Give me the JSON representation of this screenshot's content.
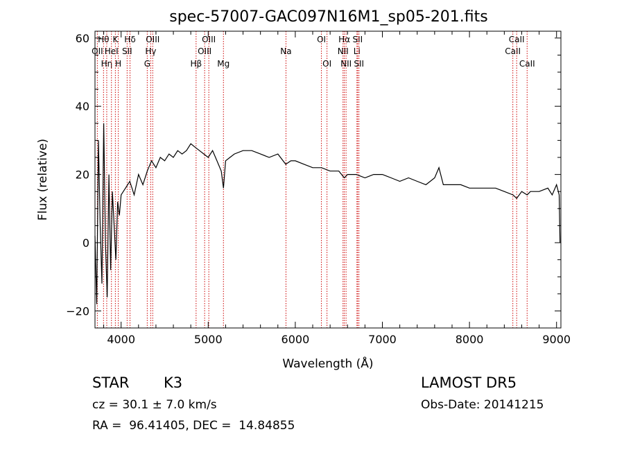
{
  "chart_data": {
    "type": "line",
    "title": "spec-57007-GAC097N16M1_sp05-201.fits",
    "xlabel": "Wavelength (Å)",
    "ylabel": "Flux (relative)",
    "xlim": [
      3700,
      9050
    ],
    "ylim": [
      -25,
      62
    ],
    "x_ticks": [
      4000,
      5000,
      6000,
      7000,
      8000,
      9000
    ],
    "y_ticks": [
      -20,
      0,
      20,
      40,
      60
    ],
    "grid": false,
    "series": [
      {
        "x": [
          3700,
          3720,
          3740,
          3760,
          3780,
          3800,
          3820,
          3840,
          3860,
          3880,
          3900,
          3920,
          3940,
          3960,
          3980,
          4000,
          4050,
          4100,
          4150,
          4200,
          4250,
          4300,
          4350,
          4400,
          4450,
          4500,
          4550,
          4600,
          4650,
          4700,
          4750,
          4800,
          4850,
          4900,
          4950,
          5000,
          5050,
          5100,
          5150,
          5175,
          5200,
          5250,
          5300,
          5400,
          5500,
          5600,
          5700,
          5800,
          5890,
          5950,
          6000,
          6100,
          6200,
          6300,
          6400,
          6500,
          6563,
          6600,
          6700,
          6800,
          6900,
          7000,
          7100,
          7200,
          7300,
          7400,
          7500,
          7600,
          7650,
          7700,
          7800,
          7900,
          8000,
          8100,
          8200,
          8300,
          8400,
          8500,
          8542,
          8600,
          8662,
          8700,
          8800,
          8900,
          8950,
          9000,
          9030,
          9040
        ],
        "y": [
          2,
          -18,
          30,
          5,
          -12,
          35,
          0,
          -16,
          20,
          -8,
          15,
          5,
          -5,
          12,
          8,
          14,
          16,
          18,
          14,
          20,
          17,
          21,
          24,
          22,
          25,
          24,
          26,
          25,
          27,
          26,
          27,
          29,
          28,
          27,
          26,
          25,
          27,
          24,
          21,
          16,
          24,
          25,
          26,
          27,
          27,
          26,
          25,
          26,
          23,
          24,
          24,
          23,
          22,
          22,
          21,
          21,
          19,
          20,
          20,
          19,
          20,
          20,
          19,
          18,
          19,
          18,
          17,
          19,
          22,
          17,
          17,
          17,
          16,
          16,
          16,
          16,
          15,
          14,
          13,
          15,
          14,
          15,
          15,
          16,
          14,
          17,
          14,
          0
        ]
      }
    ],
    "line_markers": [
      {
        "label": "OII",
        "x": 3727,
        "row": 2
      },
      {
        "label": "Hθ",
        "x": 3798,
        "row": 1
      },
      {
        "label": "Hη",
        "x": 3835,
        "row": 3
      },
      {
        "label": "HeI",
        "x": 3889,
        "row": 2
      },
      {
        "label": "K",
        "x": 3934,
        "row": 1
      },
      {
        "label": "H",
        "x": 3968,
        "row": 3
      },
      {
        "label": "Hδ",
        "x": 4102,
        "row": 1
      },
      {
        "label": "SII",
        "x": 4069,
        "row": 2
      },
      {
        "label": "G",
        "x": 4300,
        "row": 3
      },
      {
        "label": "Hγ",
        "x": 4340,
        "row": 2
      },
      {
        "label": "OIII",
        "x": 4363,
        "row": 1
      },
      {
        "label": "Hβ",
        "x": 4861,
        "row": 3
      },
      {
        "label": "OIII",
        "x": 4959,
        "row": 2
      },
      {
        "label": "OIII",
        "x": 5007,
        "row": 1
      },
      {
        "label": "Mg",
        "x": 5175,
        "row": 3
      },
      {
        "label": "Na",
        "x": 5893,
        "row": 2
      },
      {
        "label": "OI",
        "x": 6300,
        "row": 1
      },
      {
        "label": "OI",
        "x": 6364,
        "row": 3
      },
      {
        "label": "NII",
        "x": 6548,
        "row": 2
      },
      {
        "label": "Hα",
        "x": 6563,
        "row": 1
      },
      {
        "label": "NII",
        "x": 6583,
        "row": 3
      },
      {
        "label": "Li",
        "x": 6708,
        "row": 2
      },
      {
        "label": "SII",
        "x": 6716,
        "row": 1
      },
      {
        "label": "SII",
        "x": 6731,
        "row": 3
      },
      {
        "label": "CaII",
        "x": 8498,
        "row": 2
      },
      {
        "label": "CaII",
        "x": 8542,
        "row": 1
      },
      {
        "label": "CaII",
        "x": 8662,
        "row": 3
      }
    ]
  },
  "info": {
    "object_class": "STAR",
    "subclass": "K3",
    "redshift_text": "cz = 30.1 ± 7.0 km/s",
    "coords_text": "RA =  96.41405, DEC =  14.84855",
    "survey": "LAMOST DR5",
    "obs_date": "Obs-Date: 20141215"
  },
  "colors": {
    "axes": "#000000",
    "spectrum": "#000000",
    "line_markers": "#cc0000"
  }
}
